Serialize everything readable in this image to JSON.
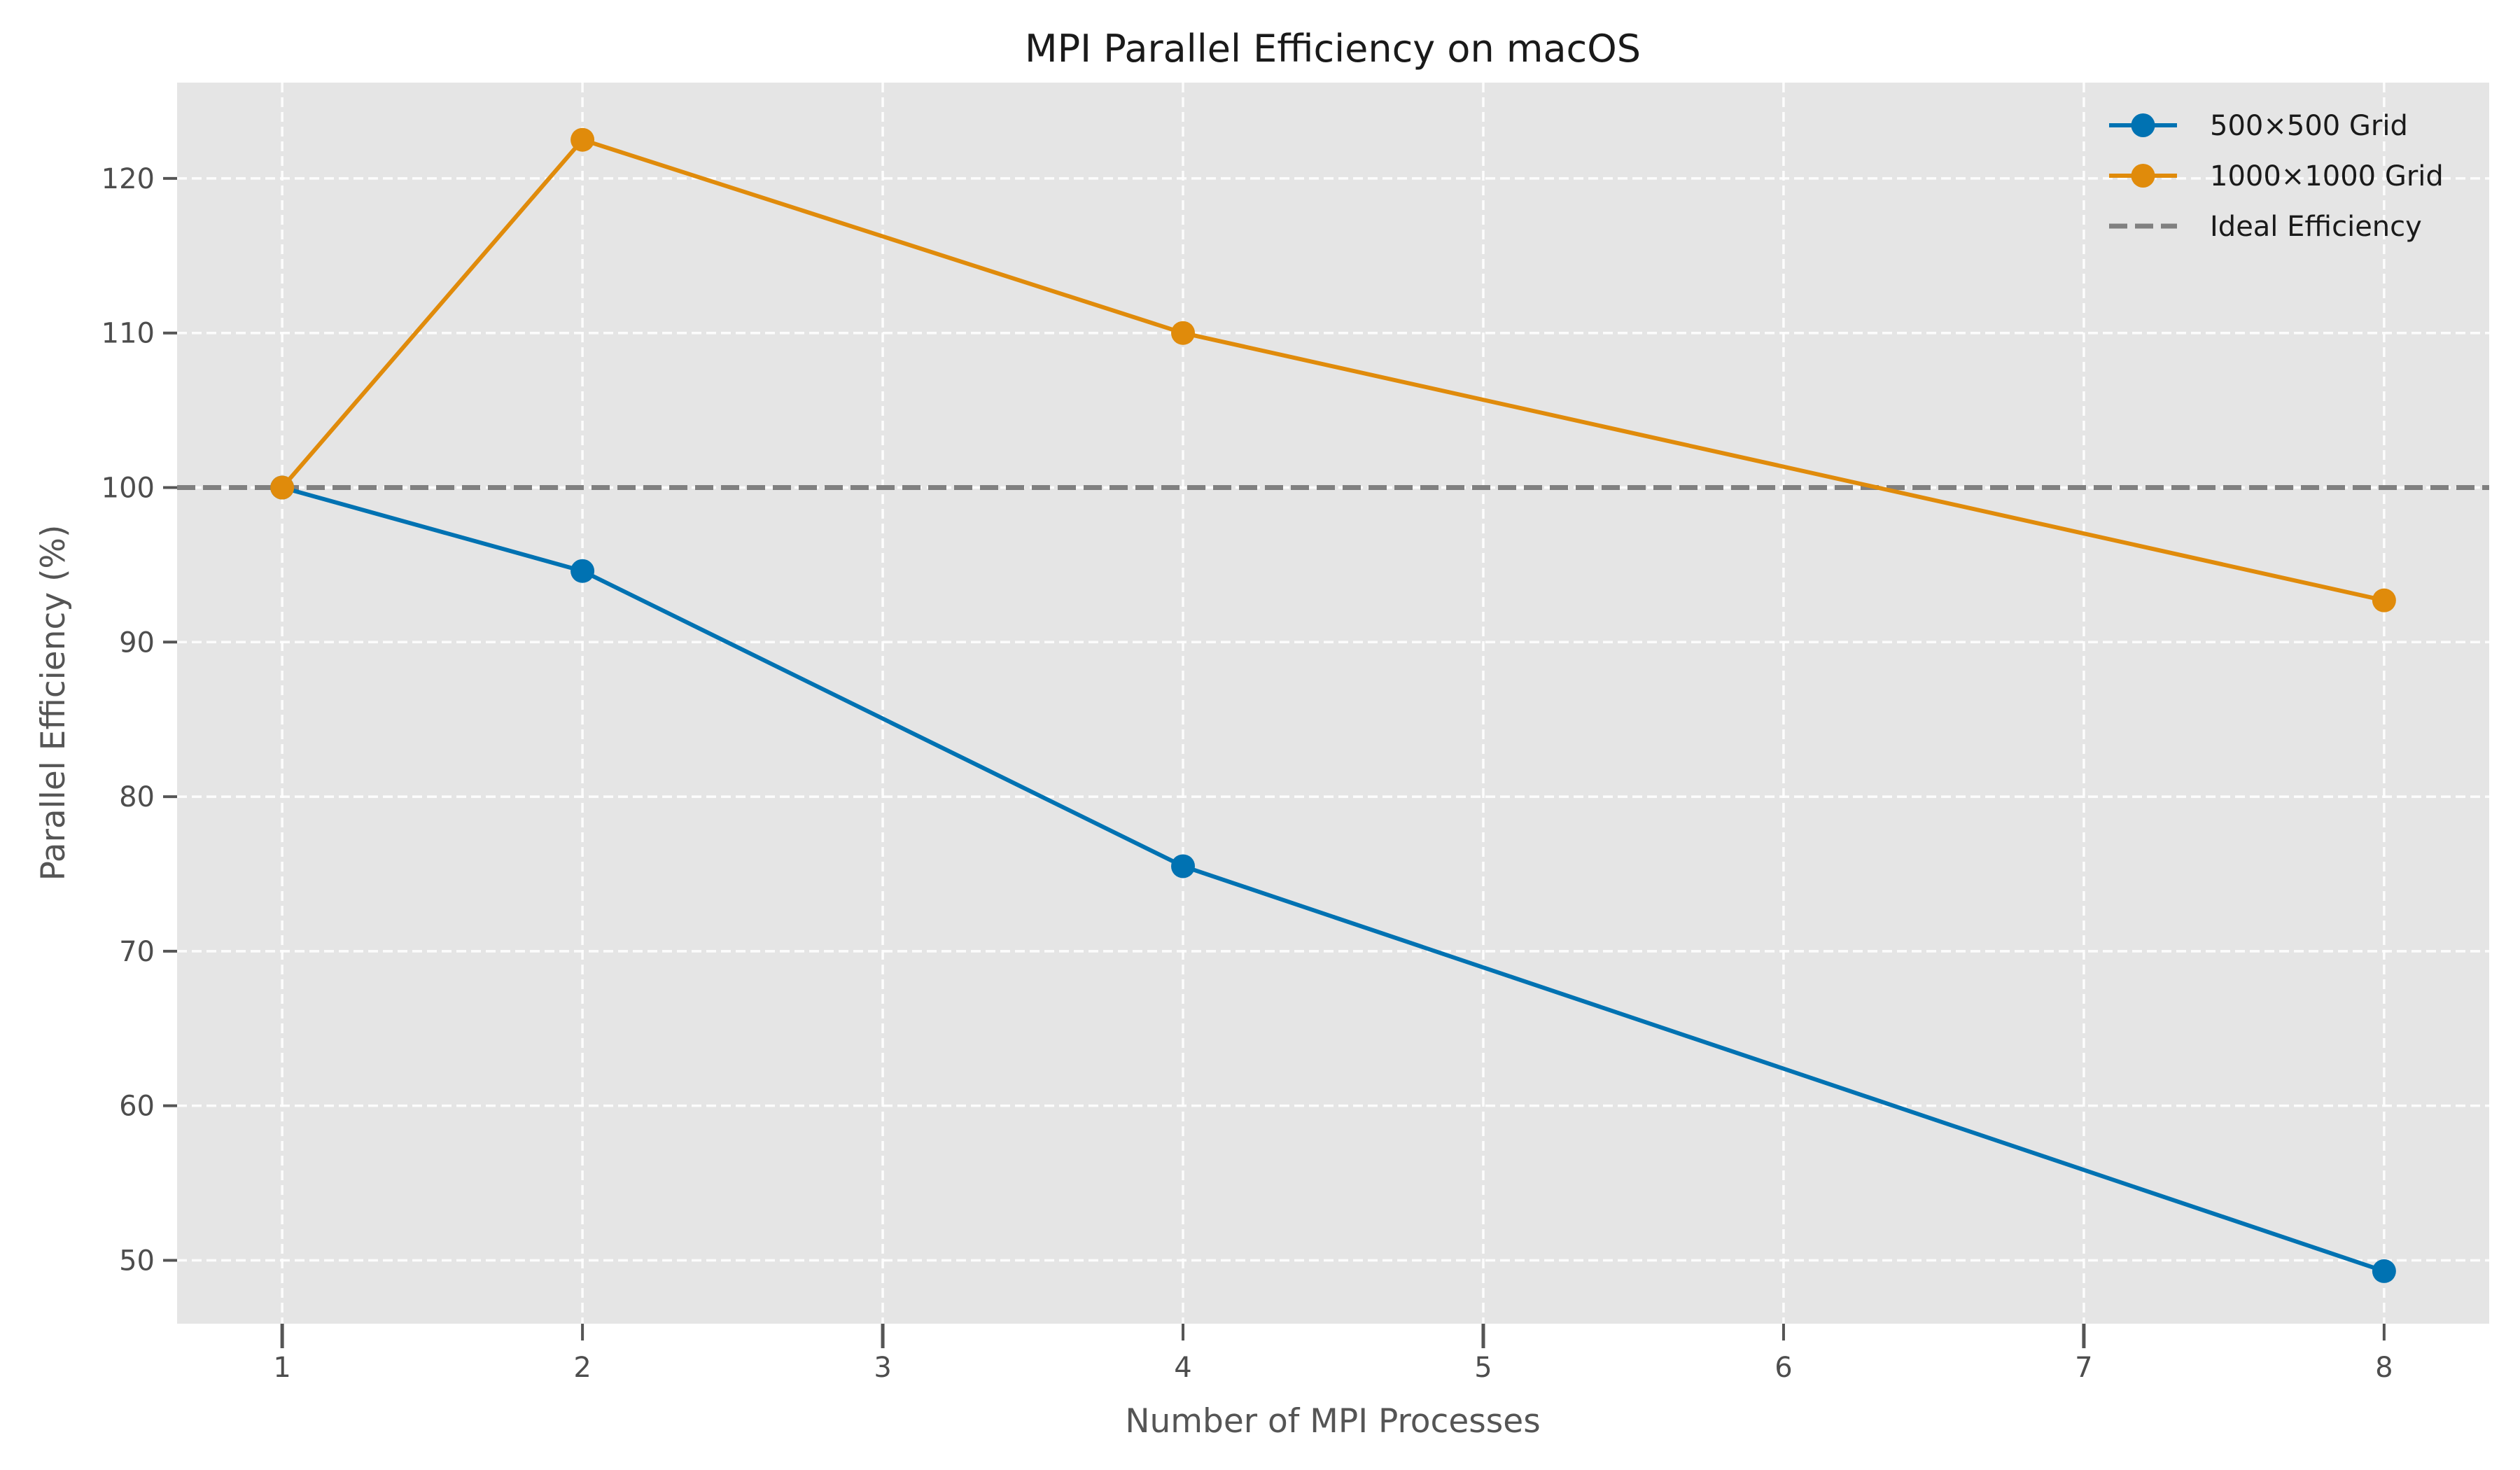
{
  "chart_data": {
    "type": "line",
    "title": "MPI Parallel Efficiency on macOS",
    "xlabel": "Number of MPI Processes",
    "ylabel": "Parallel Efficiency (%)",
    "xlim": [
      0.65,
      8.35
    ],
    "ylim": [
      45.9,
      126.2
    ],
    "xticks": [
      1,
      2,
      3,
      4,
      5,
      6,
      7,
      8
    ],
    "yticks": [
      50,
      60,
      70,
      80,
      90,
      100,
      110,
      120
    ],
    "grid": true,
    "legend_position": "top-right",
    "series": [
      {
        "name": "500×500 Grid",
        "color": "#0072b2",
        "marker": "circle",
        "x": [
          1,
          2,
          4,
          8
        ],
        "y": [
          100.0,
          94.6,
          75.5,
          49.3
        ]
      },
      {
        "name": "1000×1000 Grid",
        "color": "#e08b0b",
        "marker": "circle",
        "x": [
          1,
          2,
          4,
          8
        ],
        "y": [
          100.0,
          122.5,
          110.0,
          92.7
        ]
      }
    ],
    "reference_lines": [
      {
        "name": "Ideal Efficiency",
        "orientation": "horizontal",
        "y": 100,
        "color": "#808080",
        "style": "dashed"
      }
    ]
  }
}
